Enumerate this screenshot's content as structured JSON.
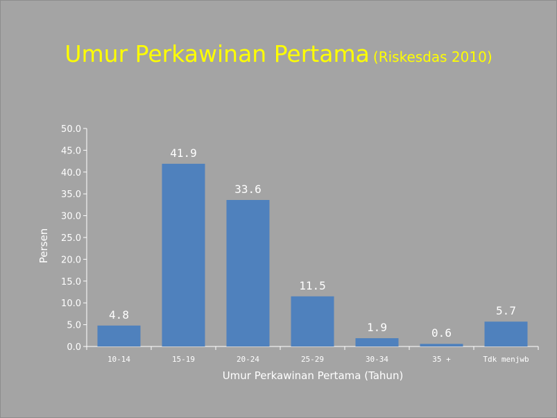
{
  "slide": {
    "title": "Umur Perkawinan Pertama",
    "subtitle": "(Riskesdas 2010)"
  },
  "colors": {
    "background": "#a4a4a4",
    "title": "#ffff00",
    "bar": "#4f81bd",
    "text": "#ffffff"
  },
  "chart_data": {
    "type": "bar",
    "categories": [
      "10-14",
      "15-19",
      "20-24",
      "25-29",
      "30-34",
      "35 +",
      "Tdk menjwb"
    ],
    "values": [
      4.8,
      41.9,
      33.6,
      11.5,
      1.9,
      0.6,
      5.7
    ],
    "value_labels": [
      "4.8",
      "41.9",
      "33.6",
      "11.5",
      "1.9",
      "0.6",
      "5.7"
    ],
    "xlabel": "Umur Perkawinan Pertama (Tahun)",
    "ylabel": "Persen",
    "ylim": [
      0,
      50
    ],
    "yticks": [
      "0.0",
      "5.0",
      "10.0",
      "15.0",
      "20.0",
      "25.0",
      "30.0",
      "35.0",
      "40.0",
      "45.0",
      "50.0"
    ],
    "grid": false,
    "legend": "none"
  }
}
